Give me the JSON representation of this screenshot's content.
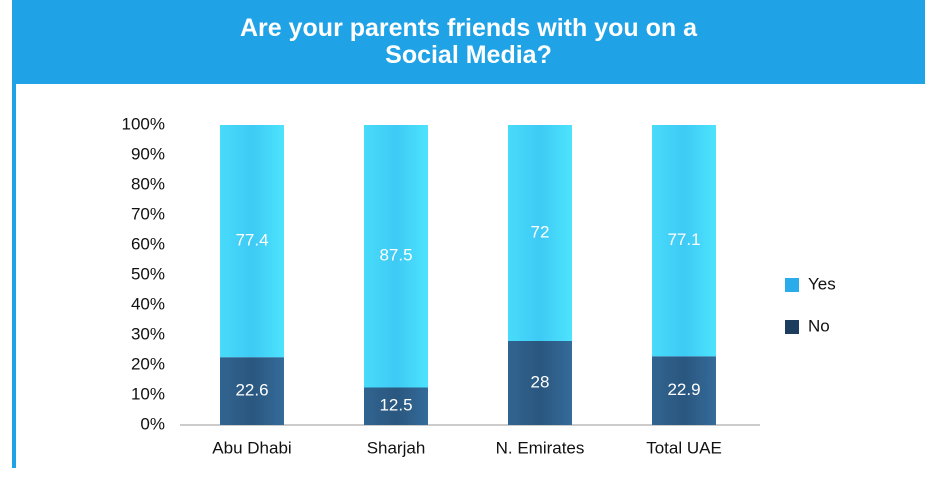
{
  "chart_data": {
    "type": "stacked_bar",
    "title": "Are your parents friends with you on a Social Media?",
    "categories": [
      "Abu Dhabi",
      "Sharjah",
      "N. Emirates",
      "Total UAE"
    ],
    "series": [
      {
        "name": "No",
        "color": "#1c3d5e",
        "values": [
          22.6,
          12.5,
          28,
          22.9
        ]
      },
      {
        "name": "Yes",
        "color": "#2aabea",
        "values": [
          77.4,
          87.5,
          72,
          77.1
        ]
      }
    ],
    "ylim": [
      0,
      100
    ],
    "yticks": [
      {
        "value": 0,
        "label": "0%"
      },
      {
        "value": 10,
        "label": "10%"
      },
      {
        "value": 20,
        "label": "20%"
      },
      {
        "value": 30,
        "label": "30%"
      },
      {
        "value": 40,
        "label": "40%"
      },
      {
        "value": 50,
        "label": "50%"
      },
      {
        "value": 60,
        "label": "60%"
      },
      {
        "value": 70,
        "label": "70%"
      },
      {
        "value": 80,
        "label": "80%"
      },
      {
        "value": 90,
        "label": "90%"
      },
      {
        "value": 100,
        "label": "100%"
      }
    ],
    "grid": false,
    "legend": "right"
  }
}
